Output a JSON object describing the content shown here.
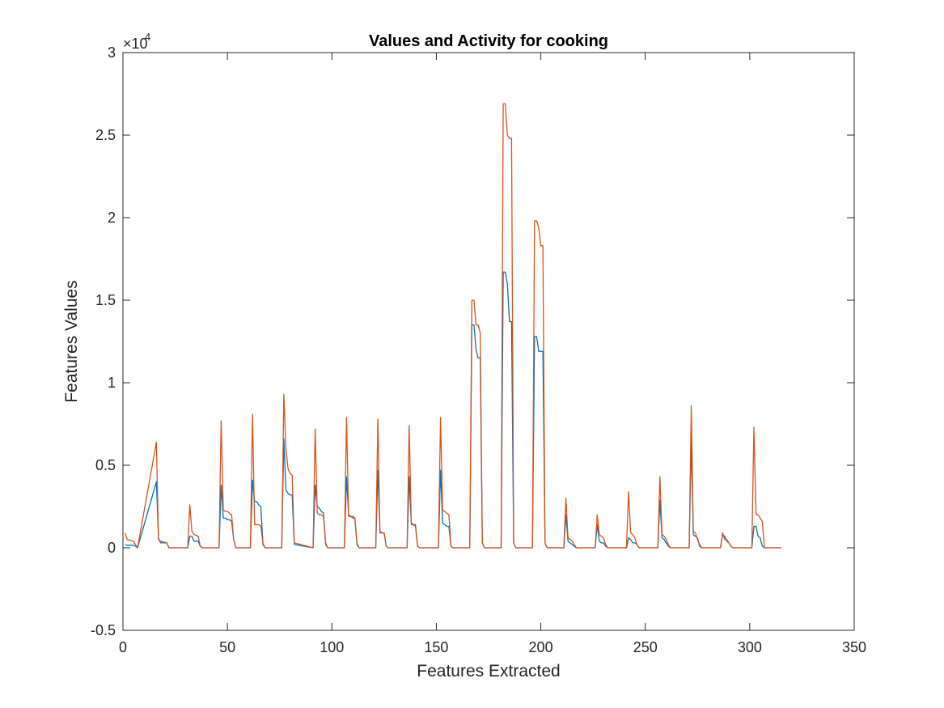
{
  "chart_data": {
    "type": "line",
    "title": "Values and  Activity  for cooking",
    "xlabel": "Features Extracted",
    "ylabel": "Features Values",
    "xlim": [
      0,
      350
    ],
    "ylim": [
      -5000,
      30000
    ],
    "x_ticks": [
      0,
      50,
      100,
      150,
      200,
      250,
      300,
      350
    ],
    "y_ticks": [
      -5000,
      0,
      5000,
      10000,
      15000,
      20000,
      25000,
      30000
    ],
    "x_tick_labels": [
      "0",
      "50",
      "100",
      "150",
      "200",
      "250",
      "300",
      "350"
    ],
    "y_tick_labels": [
      "-0.5",
      "0",
      "0.5",
      "1",
      "1.5",
      "2",
      "2.5",
      "3"
    ],
    "y_exponent": {
      "base": "×10",
      "power": "4"
    },
    "grid": false,
    "box": true,
    "series": [
      {
        "color": "#0072BD",
        "x": [
          1,
          2,
          5,
          6,
          7,
          16,
          17,
          18,
          21,
          22,
          31,
          32,
          33,
          34,
          36,
          37,
          38,
          46,
          47,
          48,
          49,
          50,
          51,
          52,
          53,
          54,
          61,
          62,
          63,
          64,
          65,
          66,
          67,
          68,
          76,
          77,
          78,
          79,
          80,
          81,
          82,
          91,
          92,
          93,
          94,
          95,
          96,
          97,
          98,
          106,
          107,
          108,
          109,
          110,
          111,
          112,
          113,
          121,
          122,
          123,
          124,
          125,
          126,
          127,
          128,
          136,
          137,
          138,
          139,
          140,
          141,
          142,
          143,
          151,
          152,
          153,
          154,
          155,
          156,
          157,
          158,
          166,
          167,
          168,
          169,
          170,
          171,
          172,
          173,
          181,
          182,
          183,
          184,
          185,
          186,
          187,
          188,
          196,
          197,
          198,
          199,
          200,
          201,
          202,
          203,
          211,
          212,
          213,
          214,
          215,
          216,
          217,
          218,
          226,
          227,
          228,
          229,
          230,
          231,
          232,
          233,
          241,
          242,
          243,
          244,
          245,
          246,
          247,
          248,
          256,
          257,
          258,
          259,
          260,
          261,
          262,
          263,
          271,
          272,
          273,
          274,
          275,
          276,
          277,
          278,
          286,
          287,
          288,
          289,
          290,
          291,
          292,
          293,
          301,
          302,
          303,
          304,
          305,
          306,
          307,
          308,
          315
        ],
        "y": [
          200,
          150,
          150,
          100,
          0,
          4000,
          600,
          300,
          300,
          0,
          0,
          700,
          700,
          400,
          400,
          100,
          0,
          0,
          3800,
          1800,
          1800,
          1700,
          1700,
          1600,
          500,
          0,
          0,
          4100,
          2800,
          2800,
          2600,
          2500,
          200,
          0,
          0,
          6600,
          3500,
          3300,
          3200,
          3200,
          200,
          0,
          3800,
          2500,
          2400,
          2200,
          2100,
          200,
          0,
          0,
          4300,
          2000,
          1900,
          1900,
          1800,
          200,
          0,
          0,
          4700,
          1000,
          900,
          900,
          100,
          0,
          0,
          0,
          4300,
          1500,
          1400,
          1400,
          100,
          0,
          0,
          0,
          4700,
          1500,
          1400,
          1300,
          1300,
          100,
          0,
          0,
          13500,
          13500,
          12000,
          11500,
          11500,
          300,
          0,
          0,
          16700,
          16700,
          16000,
          13700,
          13700,
          300,
          0,
          0,
          12800,
          12800,
          11900,
          11900,
          11900,
          300,
          0,
          0,
          2000,
          400,
          300,
          200,
          100,
          0,
          0,
          0,
          1400,
          400,
          300,
          300,
          100,
          0,
          0,
          0,
          600,
          500,
          300,
          300,
          200,
          0,
          0,
          0,
          2900,
          600,
          500,
          300,
          100,
          0,
          0,
          0,
          6400,
          800,
          700,
          600,
          100,
          0,
          0,
          0,
          800,
          700,
          400,
          300,
          100,
          0,
          0,
          0,
          1300,
          1300,
          700,
          600,
          100,
          0,
          0,
          0
        ]
      },
      {
        "color": "#D95319",
        "x": [
          1,
          2,
          5,
          6,
          7,
          16,
          17,
          18,
          21,
          22,
          31,
          32,
          33,
          34,
          36,
          37,
          38,
          46,
          47,
          48,
          49,
          50,
          51,
          52,
          53,
          54,
          61,
          62,
          63,
          64,
          65,
          66,
          67,
          68,
          76,
          77,
          78,
          79,
          80,
          81,
          82,
          91,
          92,
          93,
          94,
          95,
          96,
          97,
          98,
          106,
          107,
          108,
          109,
          110,
          111,
          112,
          113,
          121,
          122,
          123,
          124,
          125,
          126,
          127,
          128,
          136,
          137,
          138,
          139,
          140,
          141,
          142,
          143,
          151,
          152,
          153,
          154,
          155,
          156,
          157,
          158,
          166,
          167,
          168,
          169,
          170,
          171,
          172,
          173,
          181,
          182,
          183,
          184,
          185,
          186,
          187,
          188,
          196,
          197,
          198,
          199,
          200,
          201,
          202,
          203,
          211,
          212,
          213,
          214,
          215,
          216,
          217,
          218,
          226,
          227,
          228,
          229,
          230,
          231,
          232,
          233,
          241,
          242,
          243,
          244,
          245,
          246,
          247,
          248,
          256,
          257,
          258,
          259,
          260,
          261,
          262,
          263,
          271,
          272,
          273,
          274,
          275,
          276,
          277,
          278,
          286,
          287,
          288,
          289,
          290,
          291,
          292,
          293,
          301,
          302,
          303,
          304,
          305,
          306,
          307,
          308,
          315
        ],
        "y": [
          900,
          500,
          400,
          200,
          0,
          6400,
          500,
          400,
          300,
          0,
          0,
          2600,
          1000,
          800,
          700,
          100,
          0,
          0,
          7700,
          2300,
          2200,
          2200,
          2100,
          2000,
          500,
          0,
          0,
          8100,
          1400,
          1400,
          1400,
          1300,
          300,
          0,
          0,
          9300,
          6000,
          4800,
          4500,
          4400,
          300,
          0,
          7200,
          2100,
          2000,
          2000,
          1900,
          300,
          0,
          0,
          7900,
          1900,
          1900,
          1800,
          1800,
          300,
          0,
          0,
          7800,
          900,
          900,
          900,
          100,
          0,
          0,
          0,
          7400,
          1400,
          1400,
          1300,
          100,
          0,
          0,
          0,
          7900,
          2300,
          2200,
          2100,
          2000,
          100,
          0,
          0,
          15000,
          15000,
          13500,
          13500,
          13000,
          300,
          0,
          0,
          26900,
          26900,
          25000,
          24800,
          24800,
          300,
          0,
          0,
          19800,
          19800,
          19400,
          18300,
          18300,
          300,
          0,
          0,
          3000,
          600,
          500,
          400,
          200,
          0,
          0,
          0,
          2000,
          800,
          700,
          600,
          200,
          0,
          0,
          0,
          3400,
          900,
          800,
          600,
          200,
          0,
          0,
          0,
          4300,
          800,
          700,
          500,
          200,
          0,
          0,
          0,
          8600,
          1000,
          900,
          500,
          200,
          0,
          0,
          0,
          900,
          500,
          500,
          300,
          100,
          0,
          0,
          0,
          7300,
          2000,
          2000,
          1800,
          1600,
          0,
          0,
          0
        ]
      }
    ]
  }
}
